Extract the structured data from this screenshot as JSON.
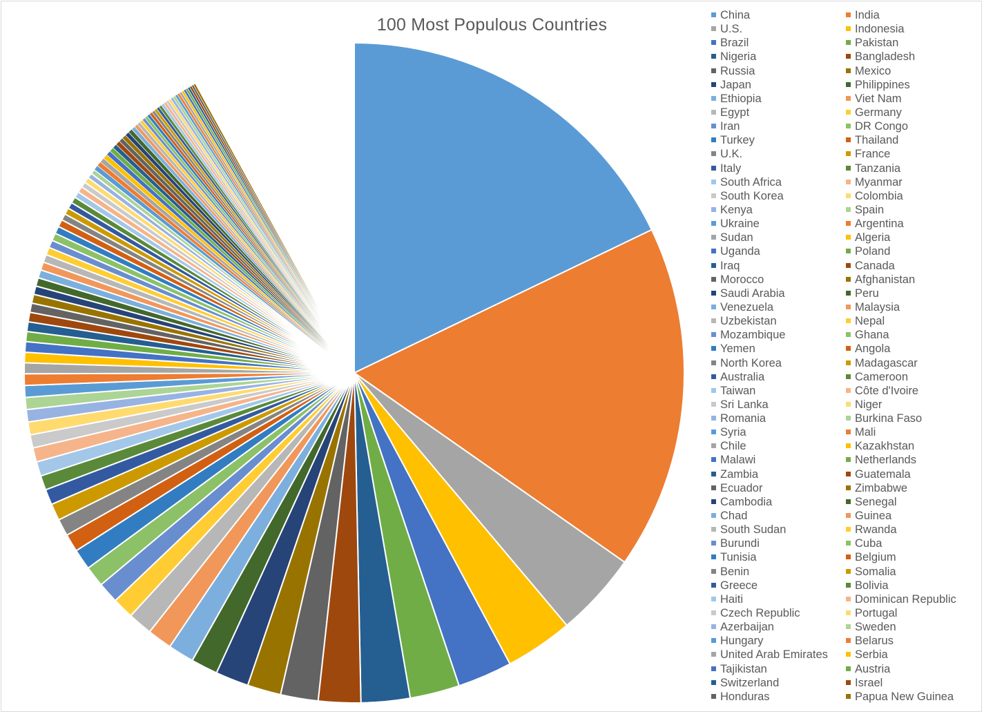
{
  "chart_data": {
    "type": "pie",
    "title": "100 Most Populous Countries",
    "legend_position": "right",
    "palette": [
      "#5B9BD5",
      "#ED7D31",
      "#A5A5A5",
      "#FFC000",
      "#4472C4",
      "#70AD47",
      "#255E91",
      "#9E480E",
      "#636363",
      "#997300",
      "#264478",
      "#43682B",
      "#7CAFDD",
      "#F1975A",
      "#B7B7B7",
      "#FFCD33",
      "#698ED0",
      "#8CC168",
      "#327DC2",
      "#D26012",
      "#848484",
      "#CC9A00",
      "#335AA1",
      "#5A8A39",
      "#A3C7E8",
      "#F5B48A",
      "#CACACA",
      "#FFDA6F",
      "#97B3E2",
      "#ACD495"
    ],
    "categories": [
      "China",
      "India",
      "U.S.",
      "Indonesia",
      "Brazil",
      "Pakistan",
      "Nigeria",
      "Bangladesh",
      "Russia",
      "Mexico",
      "Japan",
      "Philippines",
      "Ethiopia",
      "Viet Nam",
      "Egypt",
      "Germany",
      "Iran",
      "DR Congo",
      "Turkey",
      "Thailand",
      "U.K.",
      "France",
      "Italy",
      "Tanzania",
      "South Africa",
      "Myanmar",
      "South Korea",
      "Colombia",
      "Kenya",
      "Spain",
      "Ukraine",
      "Argentina",
      "Sudan",
      "Algeria",
      "Uganda",
      "Poland",
      "Iraq",
      "Canada",
      "Morocco",
      "Afghanistan",
      "Saudi Arabia",
      "Peru",
      "Venezuela",
      "Malaysia",
      "Uzbekistan",
      "Nepal",
      "Mozambique",
      "Ghana",
      "Yemen",
      "Angola",
      "North Korea",
      "Madagascar",
      "Australia",
      "Cameroon",
      "Taiwan",
      "Côte d'Ivoire",
      "Sri Lanka",
      "Niger",
      "Romania",
      "Burkina Faso",
      "Syria",
      "Mali",
      "Chile",
      "Kazakhstan",
      "Malawi",
      "Netherlands",
      "Zambia",
      "Guatemala",
      "Ecuador",
      "Zimbabwe",
      "Cambodia",
      "Senegal",
      "Chad",
      "Guinea",
      "South Sudan",
      "Rwanda",
      "Burundi",
      "Cuba",
      "Tunisia",
      "Belgium",
      "Benin",
      "Somalia",
      "Greece",
      "Bolivia",
      "Haiti",
      "Dominican Republic",
      "Czech Republic",
      "Portugal",
      "Azerbaijan",
      "Sweden",
      "Hungary",
      "Belarus",
      "United Arab Emirates",
      "Serbia",
      "Tajikistan",
      "Austria",
      "Switzerland",
      "Israel",
      "Honduras",
      "Papua New Guinea"
    ],
    "values": [
      1389,
      1311,
      322,
      258,
      208,
      189,
      186,
      161,
      143,
      128,
      126,
      102,
      99,
      94,
      93,
      81,
      80,
      79,
      79,
      68,
      65,
      64,
      59,
      55,
      55,
      54,
      50,
      49,
      47,
      46,
      45,
      44,
      41,
      40,
      40,
      38,
      37,
      36,
      35,
      34,
      32,
      32,
      31,
      31,
      30,
      29,
      29,
      29,
      28,
      28,
      25,
      25,
      24,
      24,
      23.5,
      23,
      21,
      21,
      19.5,
      19,
      18.5,
      18,
      18,
      18,
      18,
      17,
      17,
      17,
      16.5,
      16,
      16,
      16,
      15,
      13,
      13,
      12.5,
      11.5,
      11.5,
      11.5,
      11.5,
      11,
      11,
      11,
      11,
      11,
      10.5,
      10.5,
      10.3,
      10.2,
      10,
      9.8,
      9.5,
      9.4,
      9,
      8.8,
      8.7,
      8.4,
      8.3,
      8.2,
      8.1
    ]
  }
}
